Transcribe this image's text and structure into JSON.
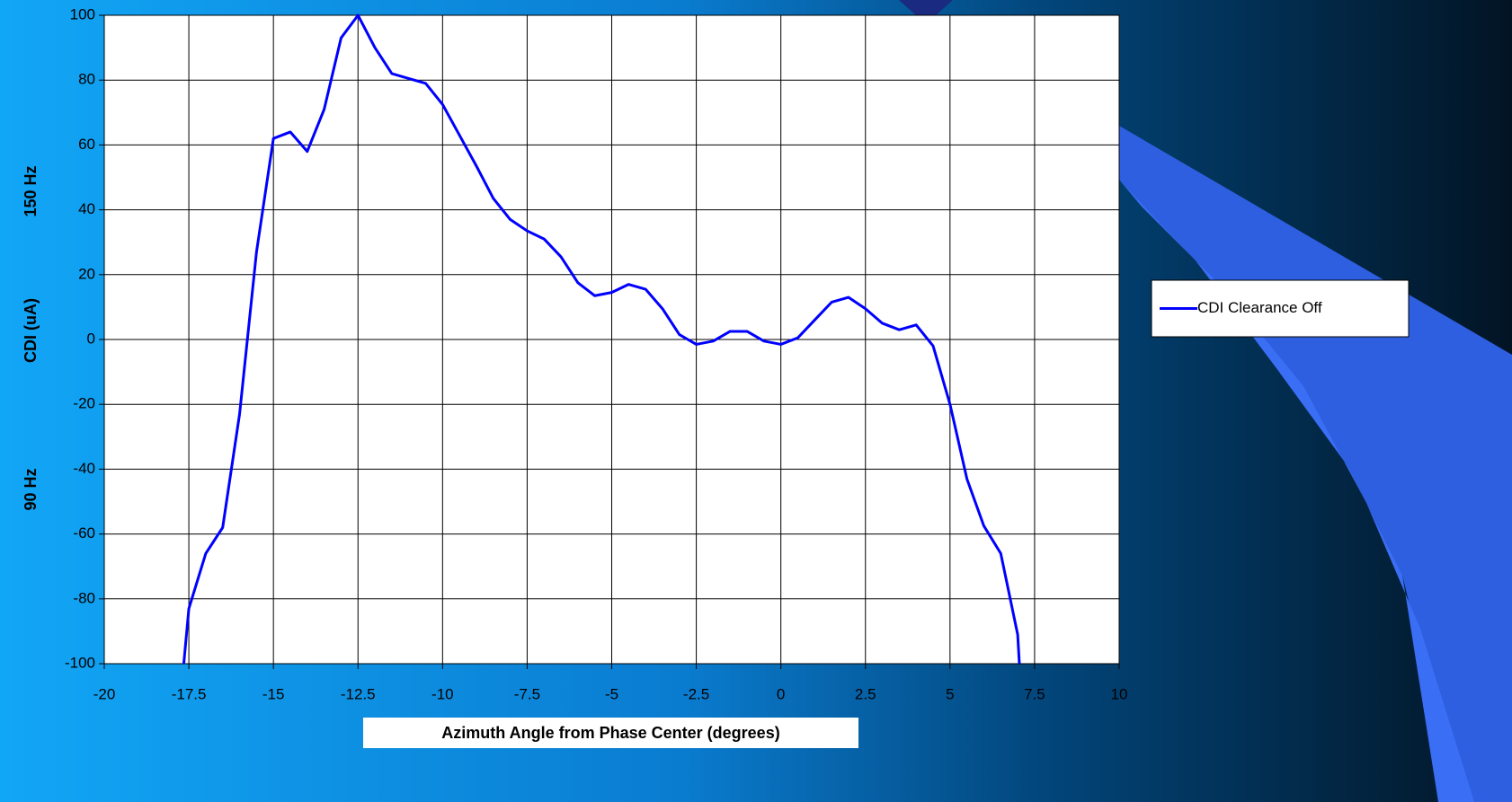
{
  "chart_data": {
    "type": "line",
    "xlabel": "Azimuth Angle from Phase Center (degrees)",
    "ylabel": "CDI (uA)",
    "annotations": [
      "150 Hz",
      "90 Hz"
    ],
    "xlim": [
      -20,
      10
    ],
    "xticks": [
      -20,
      -17.5,
      -15,
      -12.5,
      -10,
      -7.5,
      -5,
      -2.5,
      0,
      2.5,
      5,
      7.5,
      10
    ],
    "ylim": [
      -100,
      100
    ],
    "yticks": [
      -100,
      -80,
      -60,
      -40,
      -20,
      0,
      20,
      40,
      60,
      80,
      100
    ],
    "grid": true,
    "legend": "right",
    "x": [
      -17.65,
      -17.5,
      -17,
      -16.5,
      -16,
      -15.5,
      -15,
      -14.5,
      -14,
      -13.5,
      -13,
      -12.5,
      -12,
      -11.5,
      -11,
      -10.5,
      -10,
      -9.5,
      -9,
      -8.5,
      -8,
      -7.5,
      -7,
      -6.5,
      -6,
      -5.5,
      -5,
      -4.5,
      -4,
      -3.5,
      -3,
      -2.5,
      -2,
      -1.5,
      -1,
      -0.5,
      0,
      0.5,
      1,
      1.5,
      2,
      2.5,
      3,
      3.5,
      4,
      4.5,
      5,
      5.5,
      6,
      6.5,
      7,
      7.05
    ],
    "series": [
      {
        "name": "CDI Clearance Off",
        "color": "#0000ff",
        "values": [
          -100,
          -83,
          -66,
          -58,
          -23,
          27,
          62,
          64,
          58,
          71,
          93,
          100,
          90,
          82,
          80.5,
          79,
          72.5,
          63,
          53.5,
          43.5,
          37,
          33.5,
          31,
          25.5,
          17.5,
          13.5,
          14.5,
          17,
          15.5,
          9.5,
          1.5,
          -1.5,
          -0.5,
          2.5,
          2.5,
          -0.5,
          -1.5,
          0.5,
          6,
          11.5,
          13,
          9.5,
          5,
          3,
          4.5,
          -2,
          -20,
          -43,
          -57.5,
          -66,
          -91,
          -100
        ]
      }
    ]
  }
}
